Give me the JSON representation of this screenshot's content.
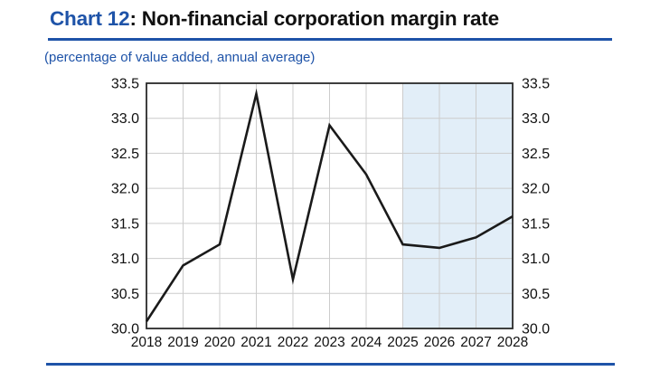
{
  "header": {
    "chart_label": "Chart 12",
    "title_rest": ": Non-financial corporation margin rate",
    "subtitle": "(percentage of value added, annual average)"
  },
  "colors": {
    "accent_blue": "#1e53a8",
    "axis_text": "#111111",
    "grid": "#cccccc",
    "plot_border": "#2a2a2a",
    "line": "#1a1a1a",
    "forecast_band": "#e2eef8",
    "background": "#ffffff"
  },
  "chart_data": {
    "type": "line",
    "title": "Non-financial corporation margin rate",
    "subtitle": "(percentage of value added, annual average)",
    "categories": [
      "2018",
      "2019",
      "2020",
      "2021",
      "2022",
      "2023",
      "2024",
      "2025",
      "2026",
      "2027",
      "2028"
    ],
    "series": [
      {
        "name": "Non-financial corporation margin rate (% of value added)",
        "values": [
          30.1,
          30.9,
          31.2,
          33.35,
          30.7,
          32.9,
          32.2,
          31.2,
          31.15,
          31.3,
          31.6
        ]
      }
    ],
    "ylim": [
      30.0,
      33.5
    ],
    "ytick_step": 0.5,
    "yticks": [
      "30.0",
      "30.5",
      "31.0",
      "31.5",
      "32.0",
      "32.5",
      "33.0",
      "33.5"
    ],
    "y_axis_sides": "left and right",
    "grid": "on",
    "legend": "none",
    "forecast_start_category": "2025",
    "forecast_band_extent": "2025 to right edge (2028)"
  }
}
